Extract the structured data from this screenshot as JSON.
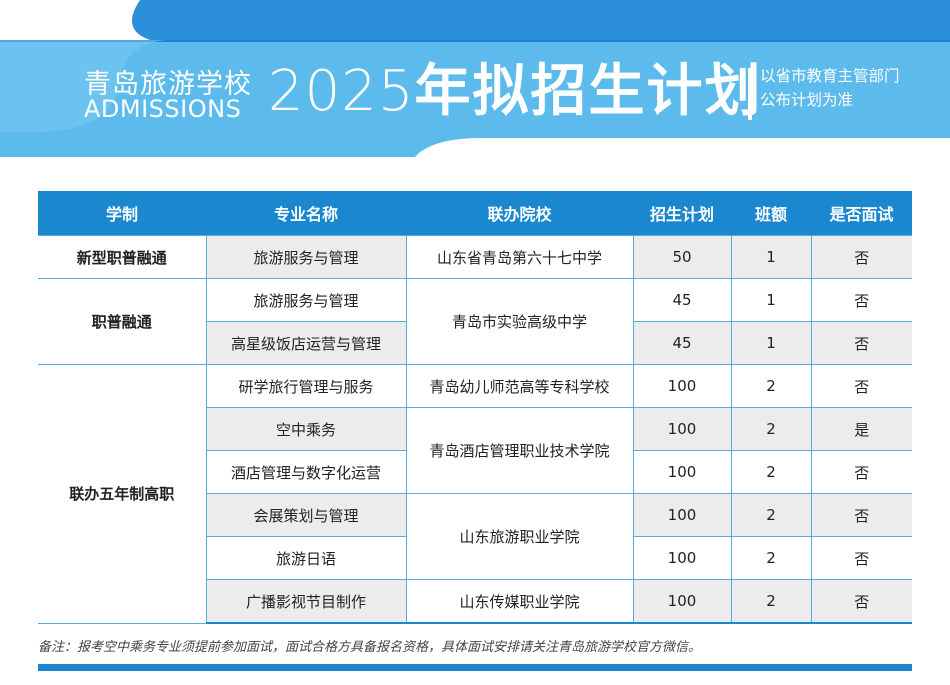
{
  "banner": {
    "school_name": "青岛旅游学校",
    "subtitle": "ADMISSIONS",
    "year": "2025",
    "title_text": "年拟招生计划",
    "note_lines": [
      "以省市教育主管部门",
      "公布计划为准"
    ],
    "colors": {
      "dark_blue": "#1a87cf",
      "light_blue": "#5fbbec",
      "top_blue": "#2a8ed8"
    }
  },
  "table": {
    "headers": [
      "学制",
      "专业名称",
      "联办院校",
      "招生计划",
      "班额",
      "是否面试"
    ],
    "categories": {
      "xinxing": "新型职普融通",
      "zhipu": "职普融通",
      "lianban": "联办五年制高职"
    },
    "schools": {
      "s67": "山东省青岛第六十七中学",
      "shiyan": "青岛市实验高级中学",
      "youer": "青岛幼儿师范高等专科学校",
      "jiudian": "青岛酒店管理职业技术学院",
      "lvyou": "山东旅游职业学院",
      "chuanmei": "山东传媒职业学院"
    },
    "rows": [
      {
        "major": "旅游服务与管理",
        "plan": "50",
        "classes": "1",
        "interview": "否"
      },
      {
        "major": "旅游服务与管理",
        "plan": "45",
        "classes": "1",
        "interview": "否"
      },
      {
        "major": "高星级饭店运营与管理",
        "plan": "45",
        "classes": "1",
        "interview": "否"
      },
      {
        "major": "研学旅行管理与服务",
        "plan": "100",
        "classes": "2",
        "interview": "否"
      },
      {
        "major": "空中乘务",
        "plan": "100",
        "classes": "2",
        "interview": "是"
      },
      {
        "major": "酒店管理与数字化运营",
        "plan": "100",
        "classes": "2",
        "interview": "否"
      },
      {
        "major": "会展策划与管理",
        "plan": "100",
        "classes": "2",
        "interview": "否"
      },
      {
        "major": "旅游日语",
        "plan": "100",
        "classes": "2",
        "interview": "否"
      },
      {
        "major": "广播影视节目制作",
        "plan": "100",
        "classes": "2",
        "interview": "否"
      }
    ]
  },
  "footnote": "备注：报考空中乘务专业须提前参加面试，面试合格方具备报名资格，具体面试安排请关注青岛旅游学校官方微信。"
}
